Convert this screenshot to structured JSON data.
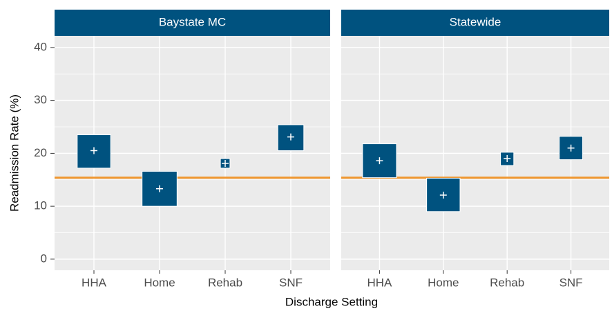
{
  "chart_data": {
    "type": "crossbar",
    "ylabel": "Readmission Rate (%)",
    "xlabel": "Discharge Setting",
    "categories": [
      "HHA",
      "Home",
      "Rehab",
      "SNF"
    ],
    "panels": [
      {
        "title": "Baystate MC",
        "lower": [
          17.2,
          10.0,
          17.2,
          20.5
        ],
        "center": [
          20.5,
          13.3,
          18.1,
          23.1
        ],
        "upper": [
          23.5,
          16.6,
          19.0,
          25.4
        ]
      },
      {
        "title": "Statewide",
        "lower": [
          15.4,
          9.0,
          17.7,
          18.8
        ],
        "center": [
          18.6,
          12.1,
          19.0,
          21.0
        ],
        "upper": [
          21.8,
          15.3,
          20.2,
          23.2
        ]
      }
    ],
    "reference_line": 15.4,
    "reference_color": "#f0962d",
    "color": "#00527f",
    "strip_color": "#00527f",
    "ylim": [
      -2.1,
      42.2
    ],
    "yticks": [
      0,
      10,
      20,
      30,
      40
    ],
    "minor_yticks": [
      5,
      15,
      25,
      35
    ],
    "grid": true
  }
}
